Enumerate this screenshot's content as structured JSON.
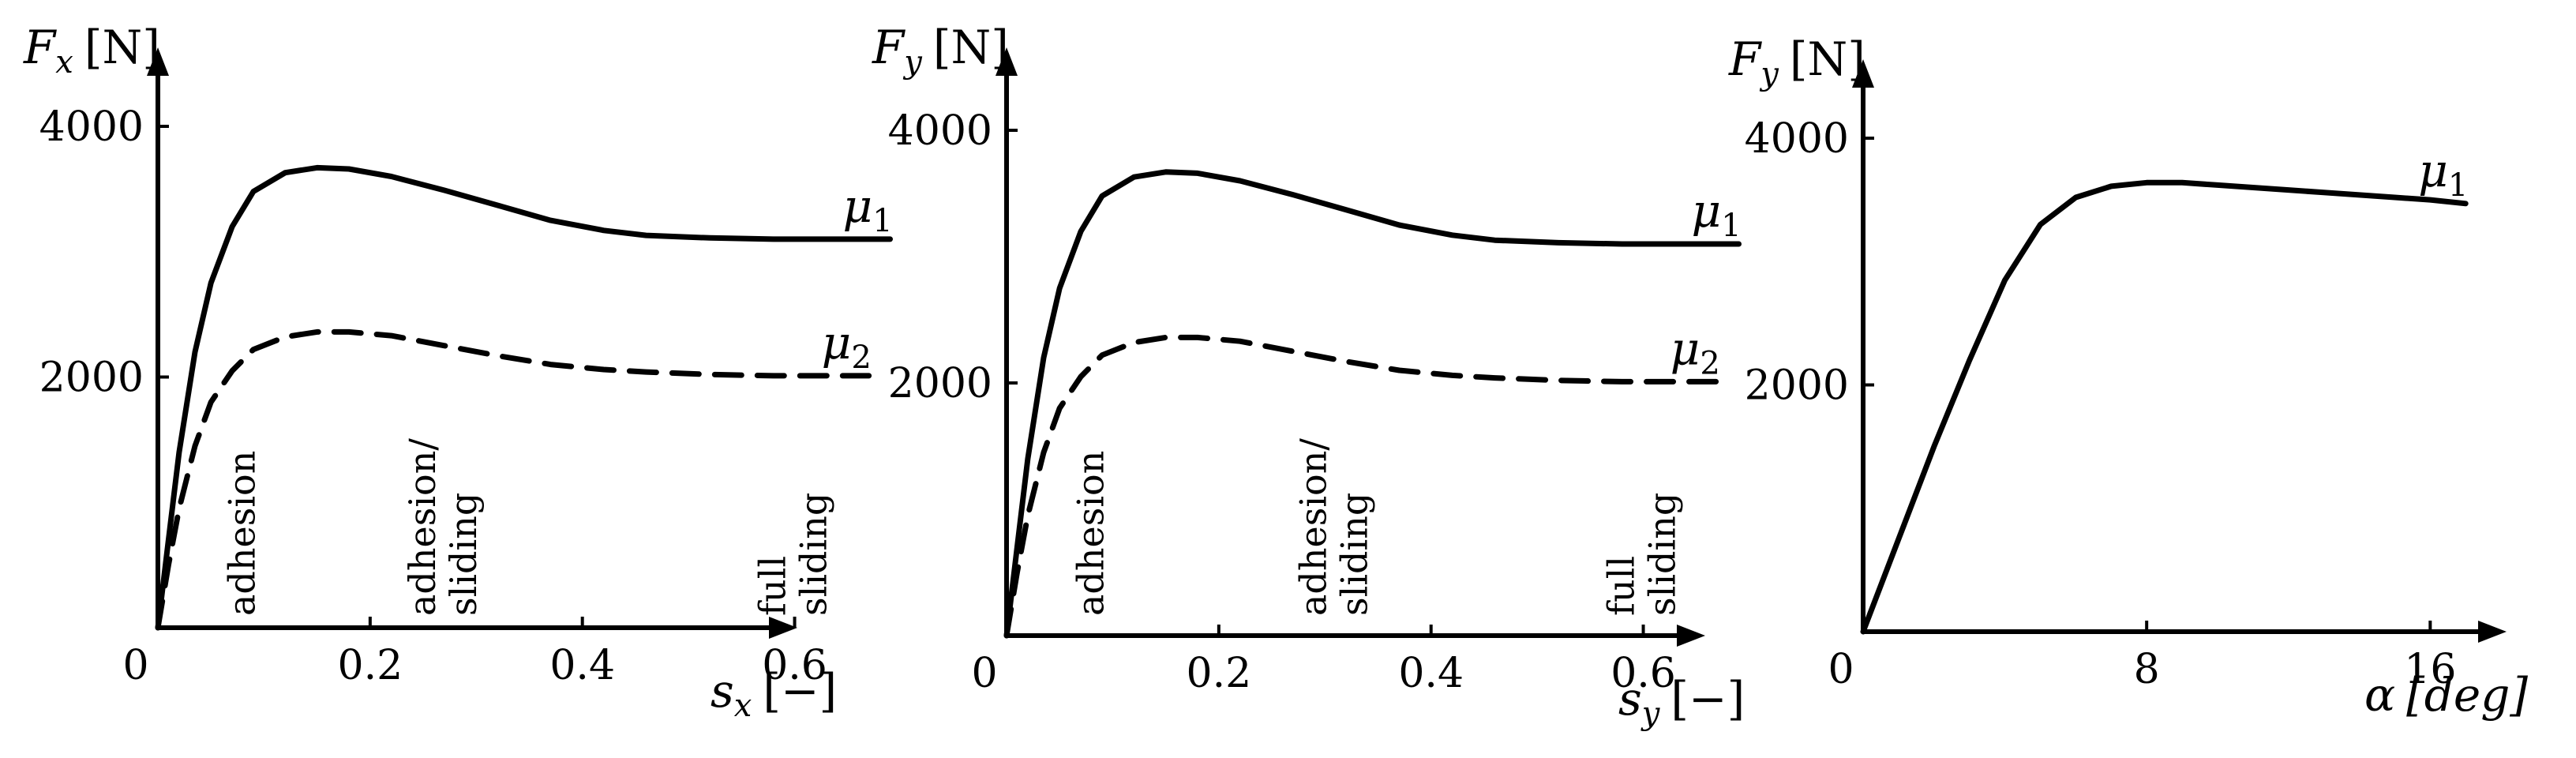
{
  "chart_data": [
    {
      "type": "line",
      "xlabel": "s_x",
      "xlabel_sub": "x",
      "xlabel_unit": "[−]",
      "ylabel": "F_x",
      "ylabel_sub": "x",
      "ylabel_unit": "[N]",
      "origin_label": "0",
      "xlim": [
        0,
        0.75
      ],
      "ylim": [
        0,
        4000
      ],
      "xticks": [
        0.2,
        0.4,
        0.6
      ],
      "xtick_labels": [
        "0.2",
        "0.4",
        "0.6"
      ],
      "yticks": [
        2000,
        4000
      ],
      "ytick_labels": [
        "2000",
        "4000"
      ],
      "series": [
        {
          "name": "μ1",
          "name_base": "μ",
          "name_sub": "1",
          "style": "solid",
          "x": [
            0,
            0.01,
            0.02,
            0.035,
            0.05,
            0.07,
            0.09,
            0.12,
            0.15,
            0.18,
            0.22,
            0.27,
            0.32,
            0.37,
            0.42,
            0.46,
            0.52,
            0.58,
            0.64,
            0.69
          ],
          "y": [
            0,
            700,
            1400,
            2200,
            2750,
            3200,
            3480,
            3630,
            3670,
            3660,
            3600,
            3490,
            3370,
            3250,
            3170,
            3130,
            3110,
            3100,
            3100,
            3100
          ]
        },
        {
          "name": "μ2",
          "name_base": "μ",
          "name_sub": "2",
          "style": "dashed",
          "x": [
            0,
            0.01,
            0.02,
            0.035,
            0.05,
            0.07,
            0.09,
            0.12,
            0.15,
            0.18,
            0.22,
            0.27,
            0.32,
            0.37,
            0.42,
            0.46,
            0.52,
            0.58,
            0.64,
            0.67
          ],
          "y": [
            0,
            500,
            950,
            1450,
            1800,
            2050,
            2220,
            2320,
            2360,
            2360,
            2330,
            2250,
            2170,
            2100,
            2060,
            2040,
            2020,
            2010,
            2010,
            2010
          ]
        }
      ],
      "zones": [
        {
          "lines": [
            "adhesion"
          ],
          "x": 0.1
        },
        {
          "lines": [
            "adhesion/",
            "sliding"
          ],
          "x": 0.27
        },
        {
          "lines": [
            "full",
            "sliding"
          ],
          "x": 0.6
        }
      ]
    },
    {
      "type": "line",
      "xlabel": "s_y",
      "xlabel_sub": "y",
      "xlabel_unit": "[−]",
      "ylabel": "F_y",
      "ylabel_sub": "y",
      "ylabel_unit": "[N]",
      "origin_label": "0",
      "xlim": [
        0,
        0.75
      ],
      "ylim": [
        0,
        4000
      ],
      "xticks": [
        0.2,
        0.4,
        0.6
      ],
      "xtick_labels": [
        "0.2",
        "0.4",
        "0.6"
      ],
      "yticks": [
        2000,
        4000
      ],
      "ytick_labels": [
        "2000",
        "4000"
      ],
      "series": [
        {
          "name": "μ1",
          "name_base": "μ",
          "name_sub": "1",
          "style": "solid",
          "x": [
            0,
            0.01,
            0.02,
            0.035,
            0.05,
            0.07,
            0.09,
            0.12,
            0.15,
            0.18,
            0.22,
            0.27,
            0.32,
            0.37,
            0.42,
            0.46,
            0.52,
            0.58,
            0.64,
            0.69
          ],
          "y": [
            0,
            700,
            1400,
            2200,
            2750,
            3200,
            3480,
            3630,
            3670,
            3660,
            3600,
            3490,
            3370,
            3250,
            3170,
            3130,
            3110,
            3100,
            3100,
            3100
          ]
        },
        {
          "name": "μ2",
          "name_base": "μ",
          "name_sub": "2",
          "style": "dashed",
          "x": [
            0,
            0.01,
            0.02,
            0.035,
            0.05,
            0.07,
            0.09,
            0.12,
            0.15,
            0.18,
            0.22,
            0.27,
            0.32,
            0.37,
            0.42,
            0.46,
            0.52,
            0.58,
            0.64,
            0.67
          ],
          "y": [
            0,
            500,
            950,
            1450,
            1800,
            2050,
            2220,
            2320,
            2360,
            2360,
            2330,
            2250,
            2170,
            2100,
            2060,
            2040,
            2020,
            2010,
            2010,
            2010
          ]
        }
      ],
      "zones": [
        {
          "lines": [
            "adhesion"
          ],
          "x": 0.1
        },
        {
          "lines": [
            "adhesion/",
            "sliding"
          ],
          "x": 0.31
        },
        {
          "lines": [
            "full",
            "sliding"
          ],
          "x": 0.6
        }
      ]
    },
    {
      "type": "line",
      "xlabel": "α",
      "xlabel_sub": "",
      "xlabel_unit": "[deg]",
      "ylabel": "F_y",
      "ylabel_sub": "y",
      "ylabel_unit": "[N]",
      "origin_label": "0",
      "xlim": [
        0,
        19
      ],
      "ylim": [
        0,
        4000
      ],
      "xticks": [
        8,
        16
      ],
      "xtick_labels": [
        "8",
        "16"
      ],
      "yticks": [
        2000,
        4000
      ],
      "ytick_labels": [
        "2000",
        "4000"
      ],
      "series": [
        {
          "name": "μ1",
          "name_base": "μ",
          "name_sub": "1",
          "style": "solid",
          "x": [
            0,
            1,
            2,
            3,
            4,
            5,
            6,
            7,
            8,
            9,
            10,
            11,
            12,
            13,
            14,
            15,
            16,
            17
          ],
          "y": [
            0,
            750,
            1500,
            2200,
            2850,
            3300,
            3520,
            3610,
            3640,
            3640,
            3620,
            3600,
            3580,
            3560,
            3540,
            3520,
            3500,
            3470
          ]
        }
      ],
      "zones": []
    }
  ]
}
